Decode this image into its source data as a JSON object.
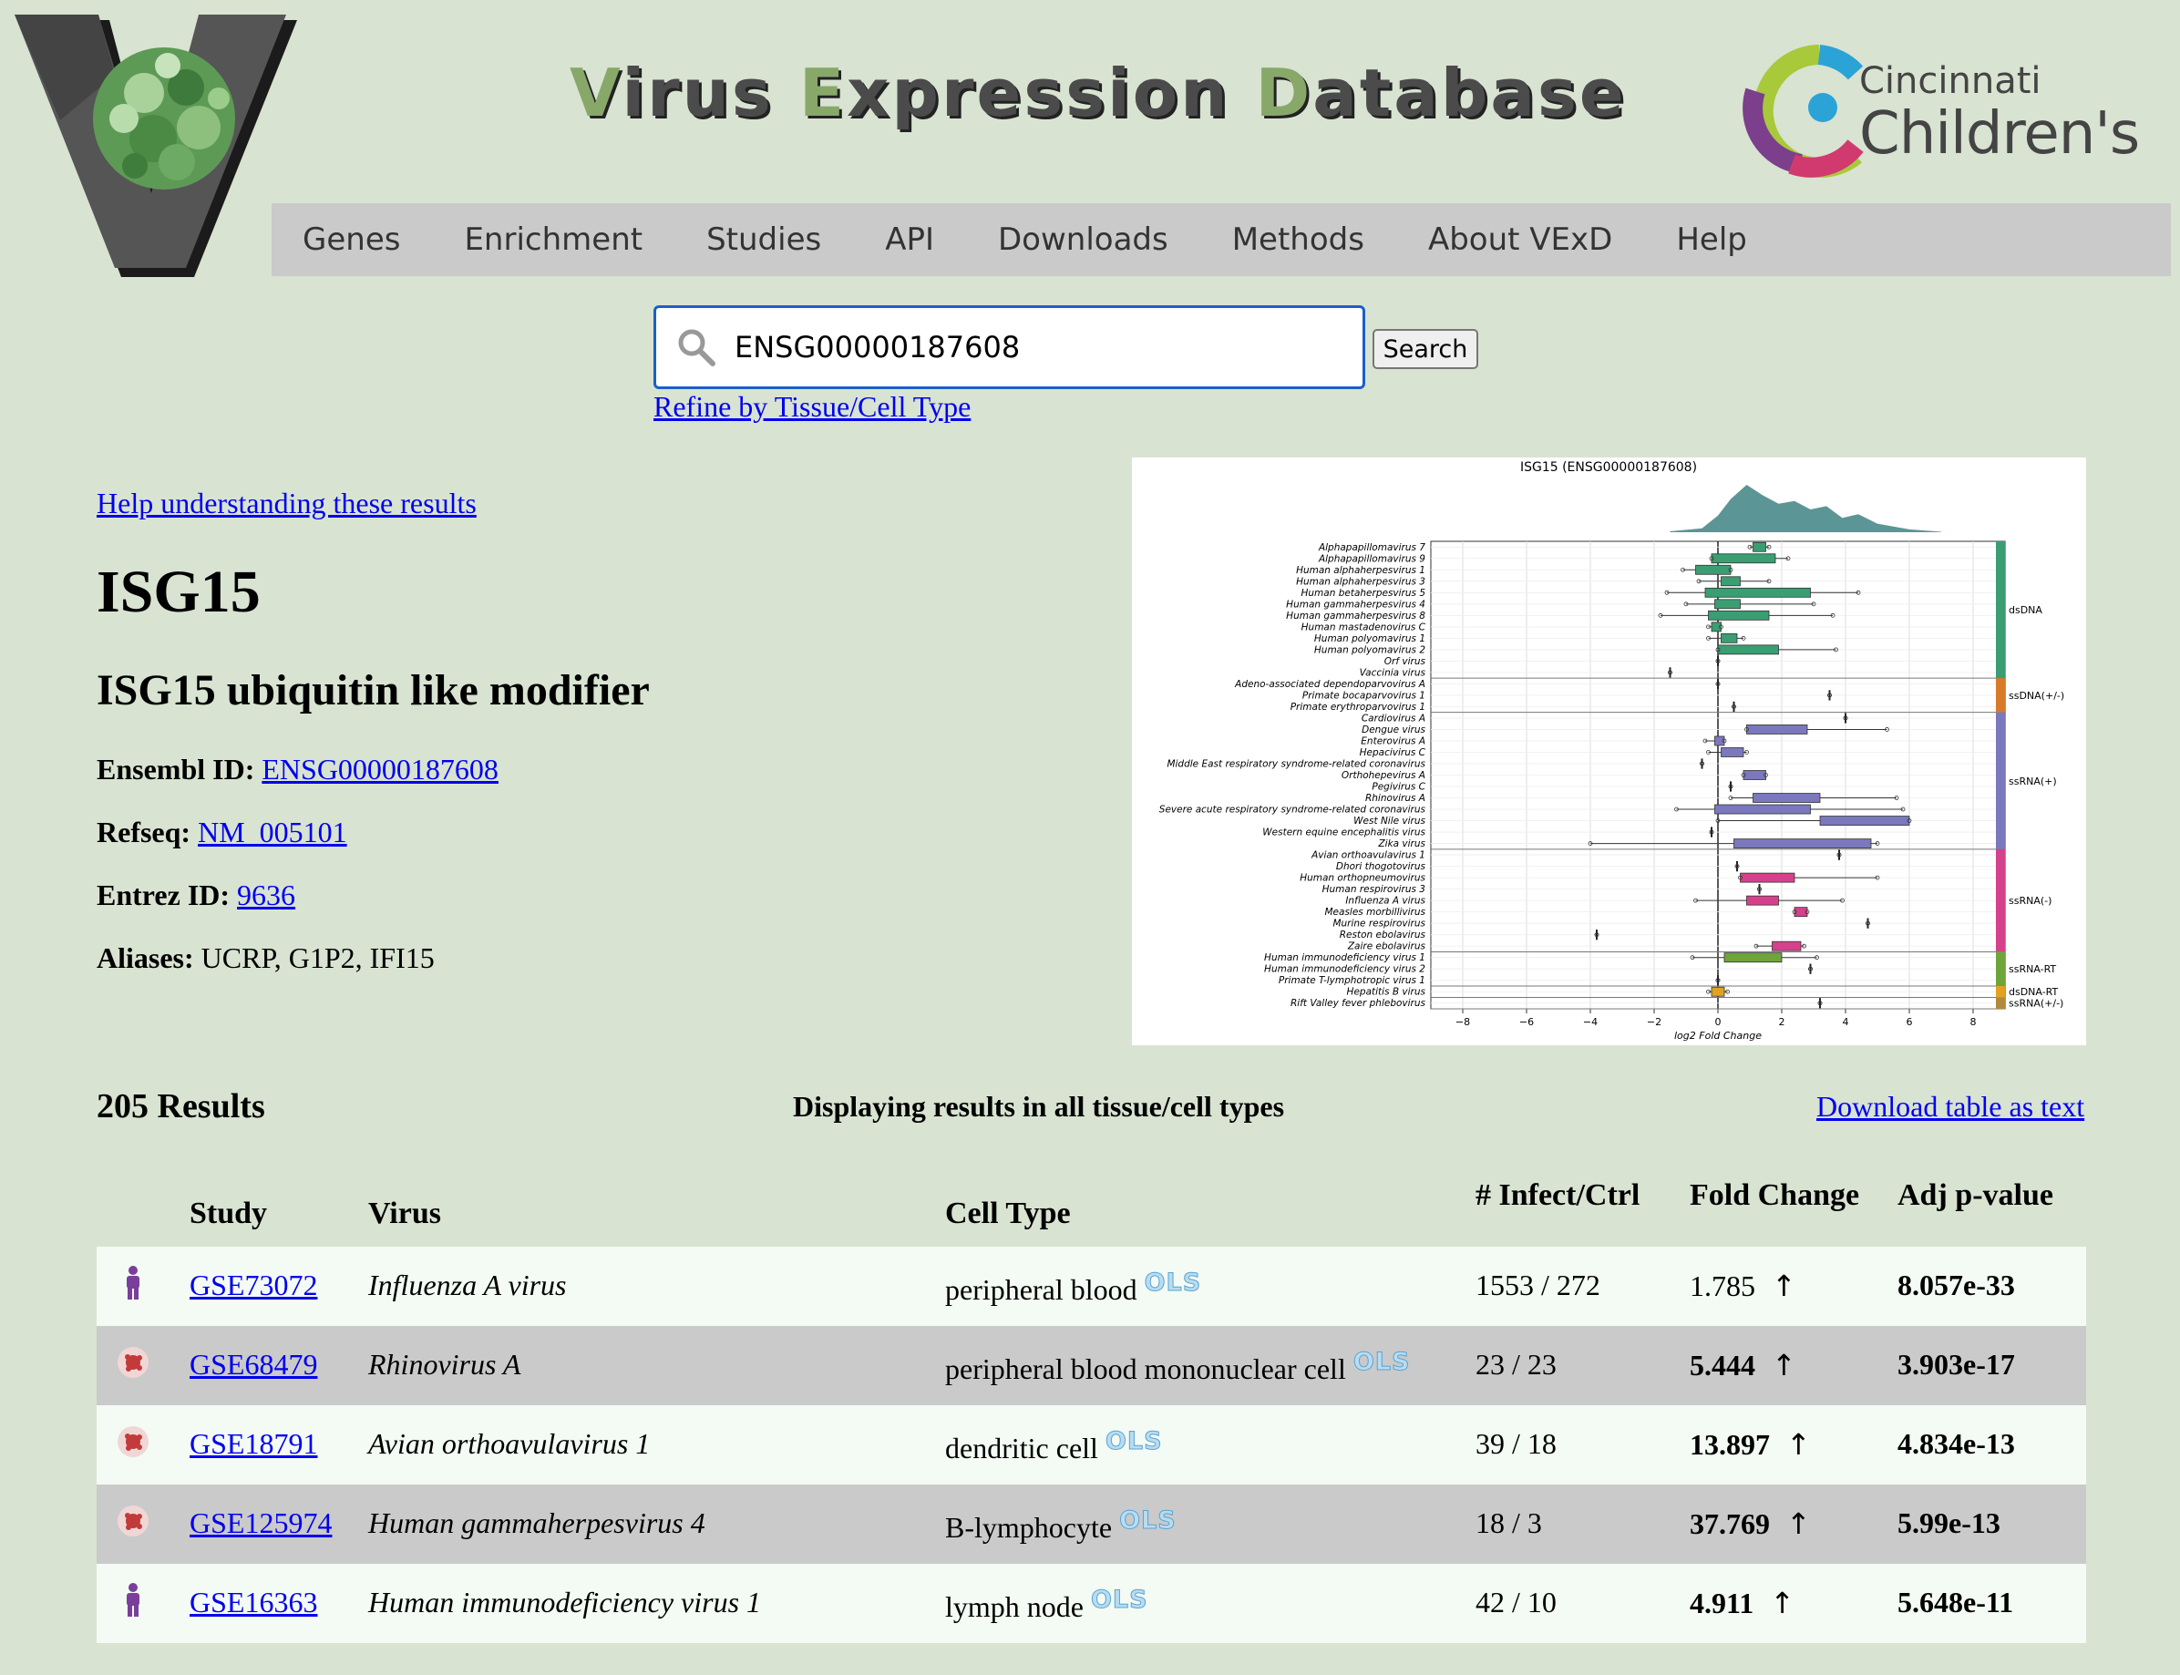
{
  "header": {
    "title_parts": [
      {
        "cap": "V",
        "rest": "irus "
      },
      {
        "cap": "E",
        "rest": "xpression "
      },
      {
        "cap": "D",
        "rest": "atabase"
      }
    ],
    "partner_line1": "Cincinnati",
    "partner_line2": "Children's"
  },
  "nav": {
    "items": [
      "Genes",
      "Enrichment",
      "Studies",
      "API",
      "Downloads",
      "Methods",
      "About VExD",
      "Help"
    ]
  },
  "search": {
    "value": "ENSG00000187608",
    "button_label": "Search",
    "refine_link": "Refine by Tissue/Cell Type"
  },
  "gene": {
    "help_link": "Help understanding these results",
    "symbol": "ISG15",
    "name": "ISG15 ubiquitin like modifier",
    "ensembl_label": "Ensembl ID:",
    "ensembl_id": "ENSG00000187608",
    "refseq_label": "Refseq:",
    "refseq": "NM_005101",
    "entrez_label": "Entrez ID:",
    "entrez_id": "9636",
    "aliases_label": "Aliases:",
    "aliases": "UCRP, G1P2, IFI15"
  },
  "results": {
    "count_text": "205 Results",
    "display_text": "Displaying results in all tissue/cell types",
    "download_link": "Download table as text",
    "columns": [
      "Study",
      "Virus",
      "Cell Type",
      "# Infect/Ctrl",
      "Fold Change",
      "Adj p-value"
    ],
    "ols_label": "OLS",
    "rows": [
      {
        "icon": "person-icon",
        "study": "GSE73072",
        "virus": "Influenza A virus",
        "cell_type": "peripheral blood",
        "infect_ctrl": "1553 / 272",
        "fold_change": "1.785",
        "fold_bold": false,
        "pvalue": "8.057e-33"
      },
      {
        "icon": "virus-icon",
        "study": "GSE68479",
        "virus": "Rhinovirus A",
        "cell_type": "peripheral blood mononuclear cell",
        "infect_ctrl": "23 / 23",
        "fold_change": "5.444",
        "fold_bold": true,
        "pvalue": "3.903e-17"
      },
      {
        "icon": "virus-icon",
        "study": "GSE18791",
        "virus": "Avian orthoavulavirus 1",
        "cell_type": "dendritic cell",
        "infect_ctrl": "39 / 18",
        "fold_change": "13.897",
        "fold_bold": true,
        "pvalue": "4.834e-13"
      },
      {
        "icon": "virus-icon",
        "study": "GSE125974",
        "virus": "Human gammaherpesvirus 4",
        "cell_type": "B-lymphocyte",
        "infect_ctrl": "18 / 3",
        "fold_change": "37.769",
        "fold_bold": true,
        "pvalue": "5.99e-13"
      },
      {
        "icon": "person-icon",
        "study": "GSE16363",
        "virus": "Human immunodeficiency virus 1",
        "cell_type": "lymph node",
        "infect_ctrl": "42 / 10",
        "fold_change": "4.911",
        "fold_bold": true,
        "pvalue": "5.648e-11"
      }
    ]
  },
  "chart_data": {
    "type": "box",
    "title": "ISG15 (ENSG00000187608)",
    "xlabel": "log2 Fold Change",
    "xlim": [
      -9,
      9
    ],
    "xticks": [
      -8,
      -6,
      -4,
      -2,
      0,
      2,
      4,
      6,
      8
    ],
    "xtick_labels": [
      "−8",
      "−6",
      "−4",
      "−2",
      "0",
      "2",
      "4",
      "6",
      "8"
    ],
    "grid": true,
    "density": [
      0.02,
      0.08,
      0.35,
      0.7,
      1.0,
      0.78,
      0.6,
      0.66,
      0.48,
      0.55,
      0.3,
      0.38,
      0.18,
      0.06,
      0.01
    ],
    "density_x": [
      -1.5,
      -0.5,
      0,
      0.4,
      0.9,
      1.4,
      1.9,
      2.4,
      2.9,
      3.4,
      3.9,
      4.4,
      5.0,
      6.0,
      7.0
    ],
    "groups": [
      {
        "name": "dsDNA",
        "color": "#3a9e72",
        "start": 0,
        "end": 11
      },
      {
        "name": "ssDNA(+/-)",
        "color": "#d97a2b",
        "start": 12,
        "end": 14
      },
      {
        "name": "ssRNA(+)",
        "color": "#7b78bd",
        "start": 15,
        "end": 26
      },
      {
        "name": "ssRNA(-)",
        "color": "#d6418b",
        "start": 27,
        "end": 35
      },
      {
        "name": "ssRNA-RT",
        "color": "#6ea53a",
        "start": 36,
        "end": 38
      },
      {
        "name": "dsDNA-RT",
        "color": "#e1a21f",
        "start": 39,
        "end": 39
      },
      {
        "name": "ssRNA(+/-)",
        "color": "#b28a3b",
        "start": 40,
        "end": 40
      }
    ],
    "viruses": [
      {
        "name": "Alphapapillomavirus 7",
        "q1": 1.1,
        "q3": 1.5,
        "lo": 1.0,
        "hi": 1.6
      },
      {
        "name": "Alphapapillomavirus 9",
        "q1": -0.2,
        "q3": 1.8,
        "lo": -0.2,
        "hi": 2.2
      },
      {
        "name": "Human alphaherpesvirus 1",
        "q1": -0.7,
        "q3": 0.4,
        "lo": -1.1,
        "hi": 0.4
      },
      {
        "name": "Human alphaherpesvirus 3",
        "q1": 0.1,
        "q3": 0.7,
        "lo": -0.6,
        "hi": 1.6
      },
      {
        "name": "Human betaherpesvirus 5",
        "q1": -0.4,
        "q3": 2.9,
        "lo": -1.6,
        "hi": 4.4
      },
      {
        "name": "Human gammaherpesvirus 4",
        "q1": -0.1,
        "q3": 0.7,
        "lo": -1.0,
        "hi": 3.0
      },
      {
        "name": "Human gammaherpesvirus 8",
        "q1": -0.3,
        "q3": 1.6,
        "lo": -1.8,
        "hi": 3.6
      },
      {
        "name": "Human mastadenovirus C",
        "q1": -0.2,
        "q3": 0.1,
        "lo": -0.3,
        "hi": 0.1
      },
      {
        "name": "Human polyomavirus 1",
        "q1": 0.1,
        "q3": 0.6,
        "lo": -0.3,
        "hi": 0.8
      },
      {
        "name": "Human polyomavirus 2",
        "q1": 0.0,
        "q3": 1.9,
        "lo": 0.0,
        "hi": 3.7
      },
      {
        "name": "Orf virus",
        "q1": 0.0,
        "q3": 0.0,
        "lo": 0.0,
        "hi": 0.0
      },
      {
        "name": "Vaccinia virus",
        "q1": -1.5,
        "q3": -1.5,
        "lo": -1.5,
        "hi": -1.5
      },
      {
        "name": "Adeno-associated dependoparvovirus A",
        "q1": 0.0,
        "q3": 0.0,
        "lo": 0.0,
        "hi": 0.0
      },
      {
        "name": "Primate bocaparvovirus 1",
        "q1": 3.5,
        "q3": 3.5,
        "lo": 3.5,
        "hi": 3.5
      },
      {
        "name": "Primate erythroparvovirus 1",
        "q1": 0.5,
        "q3": 0.5,
        "lo": 0.5,
        "hi": 0.5
      },
      {
        "name": "Cardiovirus A",
        "q1": 4.0,
        "q3": 4.0,
        "lo": 4.0,
        "hi": 4.0
      },
      {
        "name": "Dengue virus",
        "q1": 0.9,
        "q3": 2.8,
        "lo": 0.9,
        "hi": 5.3
      },
      {
        "name": "Enterovirus A",
        "q1": -0.1,
        "q3": 0.2,
        "lo": -0.4,
        "hi": 0.2
      },
      {
        "name": "Hepacivirus C",
        "q1": 0.1,
        "q3": 0.8,
        "lo": -0.3,
        "hi": 0.9
      },
      {
        "name": "Middle East respiratory syndrome-related coronavirus",
        "q1": -0.5,
        "q3": -0.5,
        "lo": -0.5,
        "hi": -0.5
      },
      {
        "name": "Orthohepevirus A",
        "q1": 0.8,
        "q3": 1.5,
        "lo": 0.8,
        "hi": 1.5
      },
      {
        "name": "Pegivirus C",
        "q1": 0.4,
        "q3": 0.4,
        "lo": 0.4,
        "hi": 0.4
      },
      {
        "name": "Rhinovirus A",
        "q1": 1.1,
        "q3": 3.2,
        "lo": 0.4,
        "hi": 5.6
      },
      {
        "name": "Severe acute respiratory syndrome-related coronavirus",
        "q1": -0.1,
        "q3": 2.9,
        "lo": -1.3,
        "hi": 5.8
      },
      {
        "name": "West Nile virus",
        "q1": 3.2,
        "q3": 6.0,
        "lo": 0.0,
        "hi": 6.0
      },
      {
        "name": "Western equine encephalitis virus",
        "q1": -0.2,
        "q3": -0.2,
        "lo": -0.2,
        "hi": -0.2
      },
      {
        "name": "Zika virus",
        "q1": 0.5,
        "q3": 4.8,
        "lo": -4.0,
        "hi": 5.0
      },
      {
        "name": "Avian orthoavulavirus 1",
        "q1": 3.8,
        "q3": 3.8,
        "lo": 3.8,
        "hi": 3.8
      },
      {
        "name": "Dhori thogotovirus",
        "q1": 0.6,
        "q3": 0.6,
        "lo": 0.6,
        "hi": 0.6
      },
      {
        "name": "Human orthopneumovirus",
        "q1": 0.7,
        "q3": 2.4,
        "lo": 0.7,
        "hi": 5.0
      },
      {
        "name": "Human respirovirus 3",
        "q1": 1.3,
        "q3": 1.3,
        "lo": 1.3,
        "hi": 1.3
      },
      {
        "name": "Influenza A virus",
        "q1": 0.9,
        "q3": 1.9,
        "lo": -0.7,
        "hi": 3.9
      },
      {
        "name": "Measles morbillivirus",
        "q1": 2.4,
        "q3": 2.8,
        "lo": 2.4,
        "hi": 2.8
      },
      {
        "name": "Murine respirovirus",
        "q1": 4.7,
        "q3": 4.7,
        "lo": 4.7,
        "hi": 4.7
      },
      {
        "name": "Reston ebolavirus",
        "q1": -3.8,
        "q3": -3.8,
        "lo": -3.8,
        "hi": -3.8
      },
      {
        "name": "Zaire ebolavirus",
        "q1": 1.7,
        "q3": 2.6,
        "lo": 1.2,
        "hi": 2.7
      },
      {
        "name": "Human immunodeficiency virus 1",
        "q1": 0.2,
        "q3": 2.0,
        "lo": -0.8,
        "hi": 3.1
      },
      {
        "name": "Human immunodeficiency virus 2",
        "q1": 2.9,
        "q3": 2.9,
        "lo": 2.9,
        "hi": 2.9
      },
      {
        "name": "Primate T-lymphotropic virus 1",
        "q1": 0.0,
        "q3": 0.0,
        "lo": 0.0,
        "hi": 0.0
      },
      {
        "name": "Hepatitis B virus",
        "q1": -0.2,
        "q3": 0.2,
        "lo": -0.3,
        "hi": 0.3
      },
      {
        "name": "Rift Valley fever phlebovirus",
        "q1": 3.2,
        "q3": 3.2,
        "lo": 3.2,
        "hi": 3.2
      }
    ]
  }
}
